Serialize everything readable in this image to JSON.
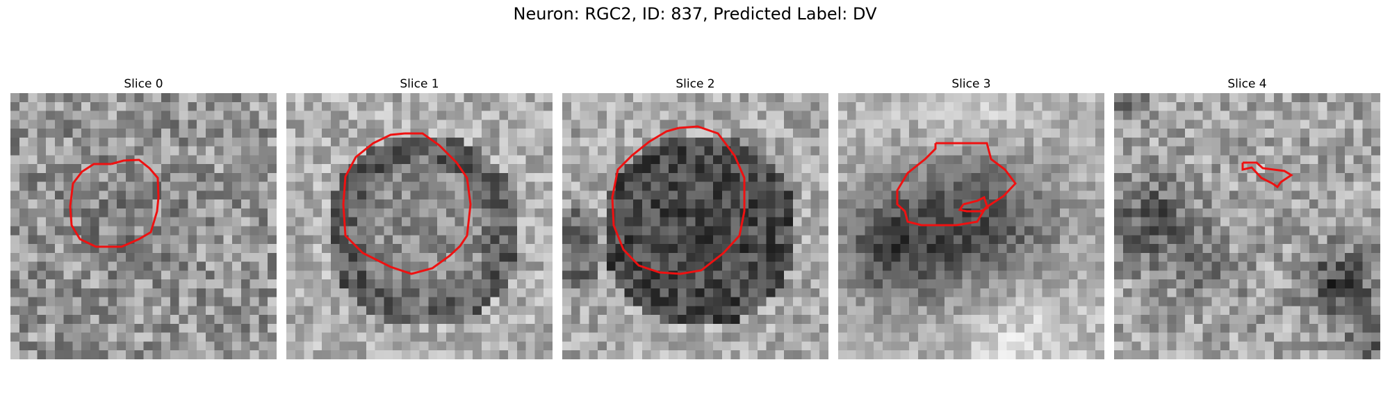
{
  "figure": {
    "title": "Neuron: RGC2, ID: 837, Predicted Label: DV"
  },
  "colors": {
    "contour": "#ee1111",
    "background": "#ffffff"
  },
  "panels": [
    {
      "title": "Slice 0",
      "image": "grayscale-noise-dim-soma"
    },
    {
      "title": "Slice 1",
      "image": "grayscale-noise-dark-ring-soma"
    },
    {
      "title": "Slice 2",
      "image": "grayscale-noise-dark-soma"
    },
    {
      "title": "Slice 3",
      "image": "grayscale-noise-dark-blob"
    },
    {
      "title": "Slice 4",
      "image": "grayscale-noise-texture"
    }
  ]
}
